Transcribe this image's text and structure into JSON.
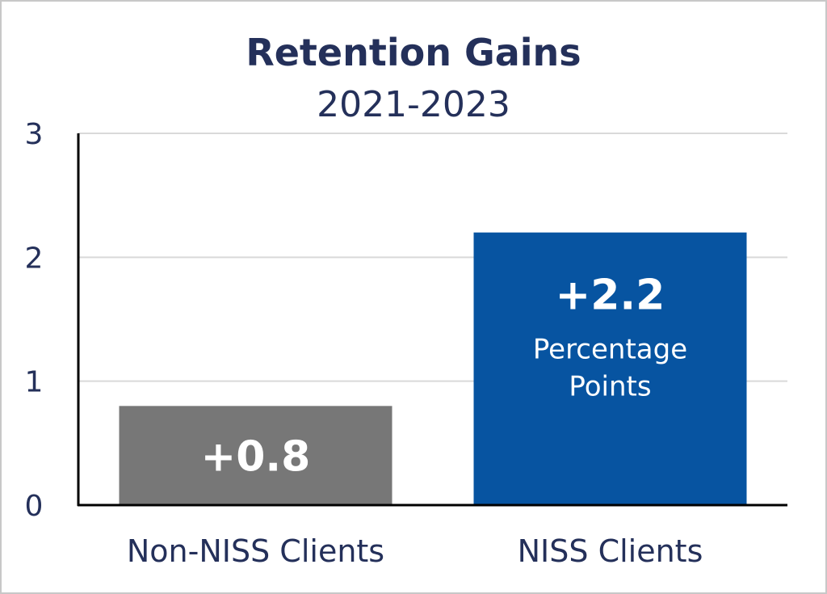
{
  "chart_data": {
    "type": "bar",
    "title": "Retention Gains",
    "subtitle": "2021-2023",
    "categories": [
      "Non-NISS Clients",
      "NISS Clients"
    ],
    "values": [
      0.8,
      2.2
    ],
    "data_labels": [
      "+0.8",
      "+2.2"
    ],
    "data_sublabels": [
      "",
      "Percentage Points"
    ],
    "bar_colors": [
      "#777777",
      "#0754a1"
    ],
    "ylim": [
      0,
      3
    ],
    "yticks": [
      0,
      1,
      2,
      3
    ],
    "grid": true,
    "xlabel": "",
    "ylabel": ""
  }
}
